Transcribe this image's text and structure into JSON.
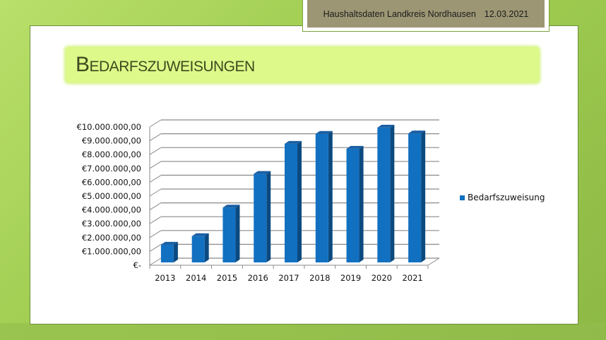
{
  "header": {
    "label": "Haushaltsdaten Landkreis Nordhausen",
    "date": "12.03.2021"
  },
  "title": "Bedarfszuweisungen",
  "colors": {
    "bar_front": "#1270c1",
    "bar_side": "#0b4a80",
    "bar_top": "#1a5fa3",
    "title_bg": "#dcf98a",
    "header_bg": "#9c9674"
  },
  "chart_data": {
    "type": "bar",
    "title": "Bedarfszuweisungen",
    "xlabel": "",
    "ylabel": "",
    "categories": [
      "2013",
      "2014",
      "2015",
      "2016",
      "2017",
      "2018",
      "2019",
      "2020",
      "2021"
    ],
    "series": [
      {
        "name": "Bedarfszuweisung",
        "values": [
          1280000,
          1900000,
          3970000,
          6400000,
          8580000,
          9300000,
          8220000,
          9750000,
          9330000
        ]
      }
    ],
    "ylim": [
      0,
      10000000
    ],
    "y_ticks": [
      "€-",
      "€1.000.000,00",
      "€2.000.000,00",
      "€3.000.000,00",
      "€4.000.000,00",
      "€5.000.000,00",
      "€6.000.000,00",
      "€7.000.000,00",
      "€8.000.000,00",
      "€9.000.000,00",
      "€10.000.000,00"
    ],
    "grid": true,
    "legend_position": "right",
    "style": "3d-column"
  },
  "legend": {
    "label": "Bedarfszuweisung"
  }
}
